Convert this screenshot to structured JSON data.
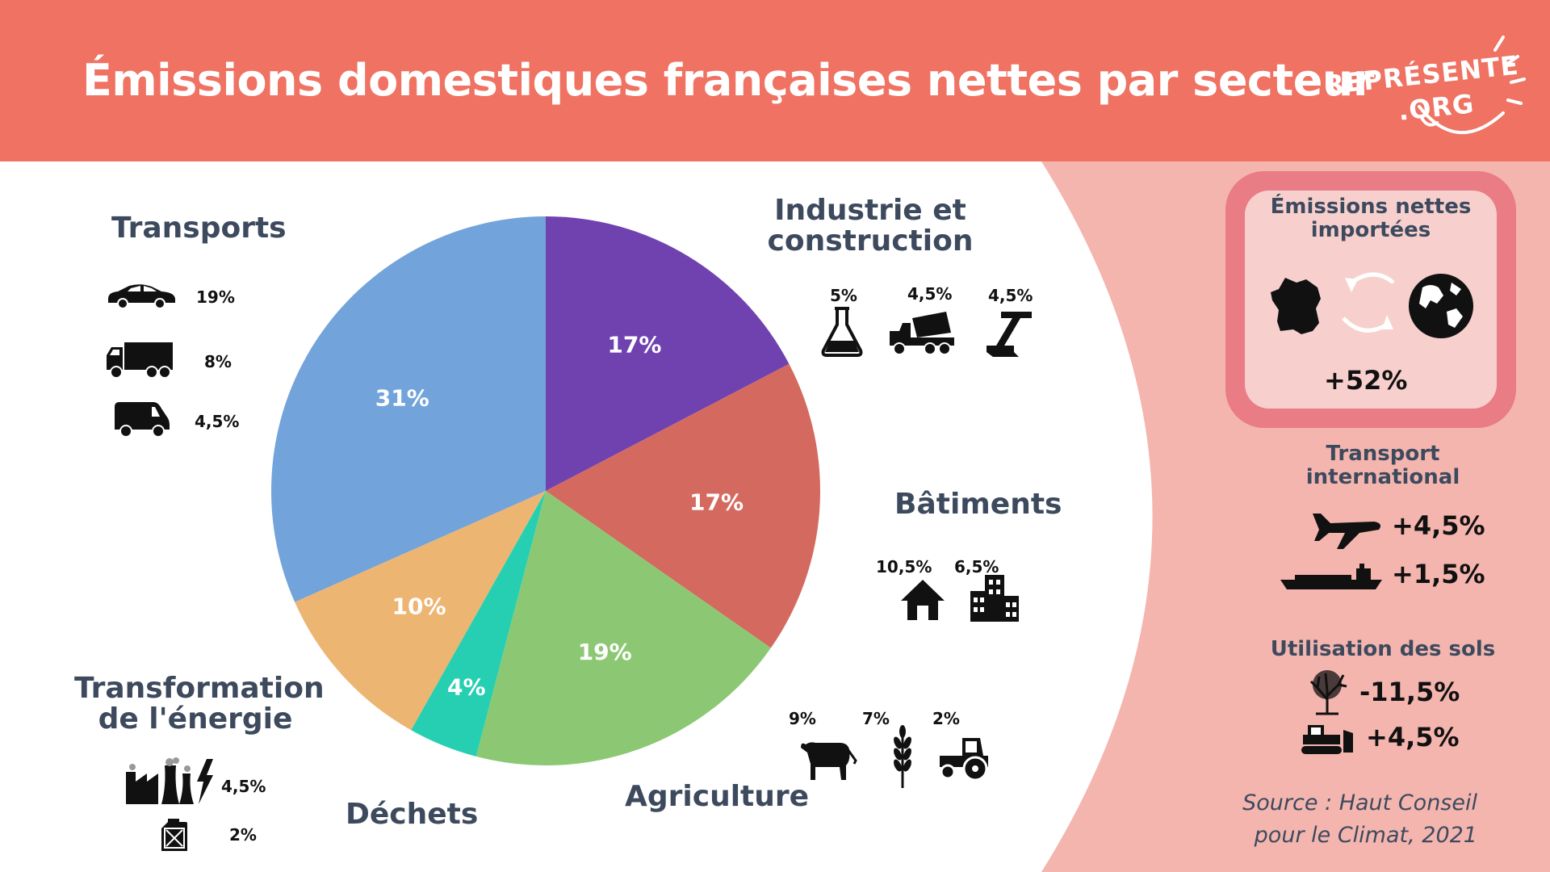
{
  "header": {
    "title": "Émissions domestiques françaises nettes par secteur",
    "logo_line1": "REPRÉSENTE",
    "logo_line2": ".ORG"
  },
  "colors": {
    "header": "#ef7263",
    "right_bg": "#f4b5ae",
    "box_border": "#e97c84",
    "box_fill": "#f7d0cd",
    "text_dark": "#3d4a5e"
  },
  "chart_data": {
    "type": "pie",
    "title": "Émissions domestiques françaises nettes par secteur",
    "slices": [
      {
        "label": "Industrie et construction",
        "value": 17,
        "display": "17%",
        "color": "#6f42b0"
      },
      {
        "label": "Bâtiments",
        "value": 17,
        "display": "17%",
        "color": "#d46a5f"
      },
      {
        "label": "Agriculture",
        "value": 19,
        "display": "19%",
        "color": "#8cc873"
      },
      {
        "label": "Déchets",
        "value": 4,
        "display": "4%",
        "color": "#27cfb2"
      },
      {
        "label": "Transformation de l'énergie",
        "value": 10,
        "display": "10%",
        "color": "#ecb572"
      },
      {
        "label": "Transports",
        "value": 31,
        "display": "31%",
        "color": "#72a3da"
      }
    ]
  },
  "sectors": {
    "transports": {
      "title": "Transports",
      "items": [
        {
          "icon": "car-icon",
          "value": "19%"
        },
        {
          "icon": "truck-icon",
          "value": "8%"
        },
        {
          "icon": "van-icon",
          "value": "4,5%"
        }
      ]
    },
    "industrie": {
      "title_line1": "Industrie et",
      "title_line2": "construction",
      "items": [
        {
          "icon": "flask-icon",
          "value": "5%"
        },
        {
          "icon": "cement-mixer-icon",
          "value": "4,5%"
        },
        {
          "icon": "steel-beam-icon",
          "value": "4,5%"
        }
      ]
    },
    "batiments": {
      "title": "Bâtiments",
      "items": [
        {
          "icon": "house-icon",
          "value": "10,5%"
        },
        {
          "icon": "office-building-icon",
          "value": "6,5%"
        }
      ]
    },
    "agriculture": {
      "title": "Agriculture",
      "items": [
        {
          "icon": "cow-icon",
          "value": "9%"
        },
        {
          "icon": "wheat-icon",
          "value": "7%"
        },
        {
          "icon": "tractor-icon",
          "value": "2%"
        }
      ]
    },
    "dechets": {
      "title": "Déchets"
    },
    "energie": {
      "title_line1": "Transformation",
      "title_line2": "de l'énergie",
      "items": [
        {
          "icon": "power-plant-icon",
          "value": "4,5%"
        },
        {
          "icon": "fuel-can-icon",
          "value": "2%"
        }
      ]
    }
  },
  "side": {
    "imported": {
      "title_line1": "Émissions nettes",
      "title_line2": "importées",
      "value": "+52%"
    },
    "transport_international": {
      "title_line1": "Transport",
      "title_line2": "international",
      "items": [
        {
          "icon": "airplane-icon",
          "value": "+4,5%"
        },
        {
          "icon": "cargo-ship-icon",
          "value": "+1,5%"
        }
      ]
    },
    "sols": {
      "title": "Utilisation des sols",
      "items": [
        {
          "icon": "tree-icon",
          "value": "-11,5%"
        },
        {
          "icon": "bulldozer-icon",
          "value": "+4,5%"
        }
      ]
    },
    "source_line1": "Source : Haut Conseil",
    "source_line2": "pour le Climat, 2021"
  }
}
